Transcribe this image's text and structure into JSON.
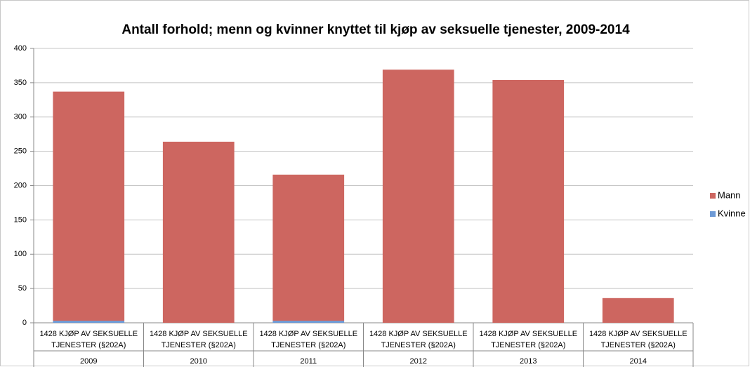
{
  "chart_data": {
    "type": "stacked_bar",
    "title": "Antall forhold; menn og kvinner knyttet til kjøp av seksuelle tjenester, 2009-2014",
    "categories": [
      "2009",
      "2010",
      "2011",
      "2012",
      "2013",
      "2014"
    ],
    "category_labels": [
      [
        "1428 KJØP AV SEKSUELLE",
        "TJENESTER (§202A)"
      ],
      [
        "1428 KJØP AV SEKSUELLE",
        "TJENESTER (§202A)"
      ],
      [
        "1428 KJØP AV SEKSUELLE",
        "TJENESTER (§202A)"
      ],
      [
        "1428 KJØP AV SEKSUELLE",
        "TJENESTER (§202A)"
      ],
      [
        "1428 KJØP AV SEKSUELLE",
        "TJENESTER (§202A)"
      ],
      [
        "1428 KJØP AV SEKSUELLE",
        "TJENESTER (§202A)"
      ]
    ],
    "series": [
      {
        "name": "Kvinne",
        "color": "#6d9ad6",
        "values": [
          3,
          0,
          3,
          0,
          0,
          0
        ]
      },
      {
        "name": "Mann",
        "color": "#cd6660",
        "values": [
          334,
          264,
          213,
          369,
          354,
          36
        ]
      }
    ],
    "ylim": [
      0,
      400
    ],
    "yticks": [
      0,
      50,
      100,
      150,
      200,
      250,
      300,
      350,
      400
    ],
    "grid": true,
    "legend": "right"
  }
}
